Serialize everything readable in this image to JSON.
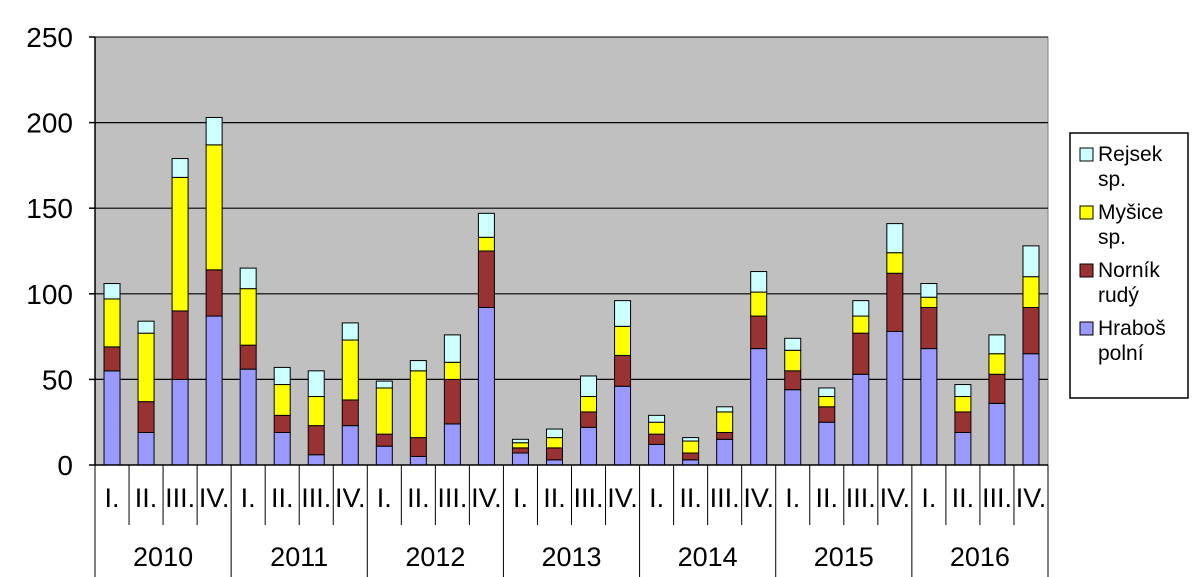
{
  "chart_data": {
    "type": "bar",
    "stacked": true,
    "title": "",
    "xlabel": "",
    "ylabel": "",
    "ylim": [
      0,
      250
    ],
    "yticks": [
      0,
      50,
      100,
      150,
      200,
      250
    ],
    "grid": true,
    "legend_position": "right",
    "years": [
      "2010",
      "2011",
      "2012",
      "2013",
      "2014",
      "2015",
      "2016"
    ],
    "quarters": [
      "I.",
      "II.",
      "III.",
      "IV."
    ],
    "categories": [
      "2010 I.",
      "2010 II.",
      "2010 III.",
      "2010 IV.",
      "2011 I.",
      "2011 II.",
      "2011 III.",
      "2011 IV.",
      "2012 I.",
      "2012 II.",
      "2012 III.",
      "2012 IV.",
      "2013 I.",
      "2013 II.",
      "2013 III.",
      "2013 IV.",
      "2014 I.",
      "2014 II.",
      "2014 III.",
      "2014 IV.",
      "2015 I.",
      "2015 II.",
      "2015 III.",
      "2015 IV.",
      "2016 I.",
      "2016 II.",
      "2016 III.",
      "2016 IV."
    ],
    "series": [
      {
        "name": "Hraboš polní",
        "legend_lines": [
          "Hraboš",
          "polní"
        ],
        "color": "#9999ff",
        "values": [
          55,
          19,
          50,
          87,
          56,
          19,
          6,
          23,
          11,
          5,
          24,
          92,
          7,
          3,
          22,
          46,
          12,
          3,
          15,
          68,
          44,
          25,
          53,
          78,
          68,
          19,
          36,
          65
        ]
      },
      {
        "name": "Norník rudý",
        "legend_lines": [
          "Norník",
          "rudý"
        ],
        "color": "#993333",
        "values": [
          14,
          18,
          40,
          27,
          14,
          10,
          17,
          15,
          7,
          11,
          26,
          33,
          3,
          7,
          9,
          18,
          6,
          4,
          4,
          19,
          11,
          9,
          24,
          34,
          24,
          12,
          17,
          27
        ]
      },
      {
        "name": "Myšice sp.",
        "legend_lines": [
          "Myšice",
          "sp."
        ],
        "color": "#ffff00",
        "values": [
          28,
          40,
          78,
          73,
          33,
          18,
          17,
          35,
          27,
          39,
          10,
          8,
          3,
          6,
          9,
          17,
          7,
          7,
          12,
          14,
          12,
          6,
          10,
          12,
          6,
          9,
          12,
          18
        ]
      },
      {
        "name": "Rejsek sp.",
        "legend_lines": [
          "Rejsek",
          "sp."
        ],
        "color": "#ccffff",
        "values": [
          9,
          7,
          11,
          16,
          12,
          10,
          15,
          10,
          4,
          6,
          16,
          14,
          2,
          5,
          12,
          15,
          4,
          2,
          3,
          12,
          7,
          5,
          9,
          17,
          8,
          7,
          11,
          18
        ]
      }
    ]
  }
}
